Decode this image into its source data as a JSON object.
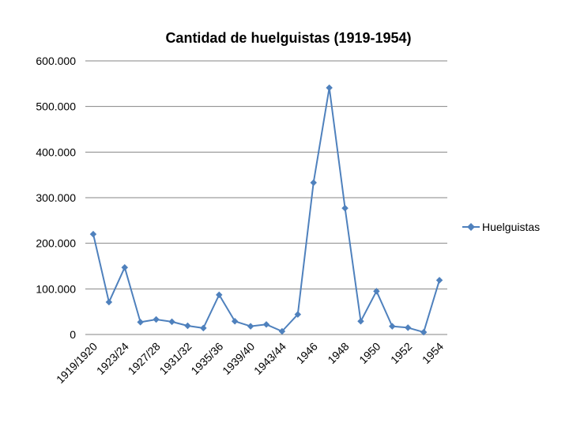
{
  "chart_data": {
    "type": "line",
    "title": "Cantidad de huelguistas (1919-1954)",
    "xlabel": "",
    "ylabel": "",
    "ylim": [
      0,
      600000
    ],
    "y_ticks": [
      0,
      100000,
      200000,
      300000,
      400000,
      500000,
      600000
    ],
    "y_tick_labels": [
      "0",
      "100.000",
      "200.000",
      "300.000",
      "400.000",
      "500.000",
      "600.000"
    ],
    "grid": true,
    "legend_position": "right",
    "line_color": "#4F81BD",
    "categories": [
      "1919/1920",
      "",
      "1923/24",
      "",
      "1927/28",
      "",
      "1931/32",
      "",
      "1935/36",
      "",
      "1939/40",
      "",
      "1943/44",
      "",
      "1946",
      "",
      "1948",
      "",
      "1950",
      "",
      "1952",
      "",
      "1954"
    ],
    "series": [
      {
        "name": "Huelguistas",
        "values": [
          220000,
          71000,
          147000,
          27000,
          33000,
          28000,
          19000,
          14000,
          87000,
          29000,
          18000,
          22000,
          7000,
          44000,
          333000,
          541000,
          277000,
          29000,
          95000,
          18000,
          15000,
          5000,
          119000
        ]
      }
    ]
  }
}
